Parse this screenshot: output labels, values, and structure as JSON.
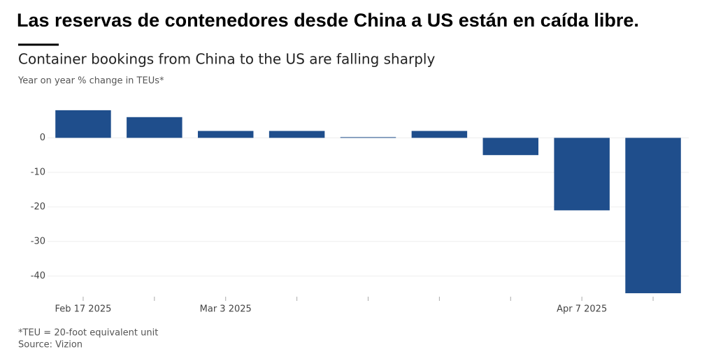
{
  "chart_data": {
    "type": "bar",
    "headline": "Las reservas de contenedores desde China a US están en caída libre.",
    "title": "Container bookings from China to the US are falling sharply",
    "subtitle": "Year on year % change in TEUs*",
    "categories": [
      "Feb 17 2025",
      null,
      "Mar 3 2025",
      null,
      null,
      null,
      null,
      "Apr 7 2025",
      null
    ],
    "values": [
      8,
      6,
      2,
      2,
      0.2,
      2,
      -5,
      -21,
      -45
    ],
    "color": "#1f4e8c",
    "ylim": [
      -46,
      10
    ],
    "yticks": [
      0,
      -10,
      -20,
      -30,
      -40
    ],
    "grid": true,
    "footnote": "*TEU = 20-foot equivalent unit",
    "source": "Source: Vizion"
  }
}
